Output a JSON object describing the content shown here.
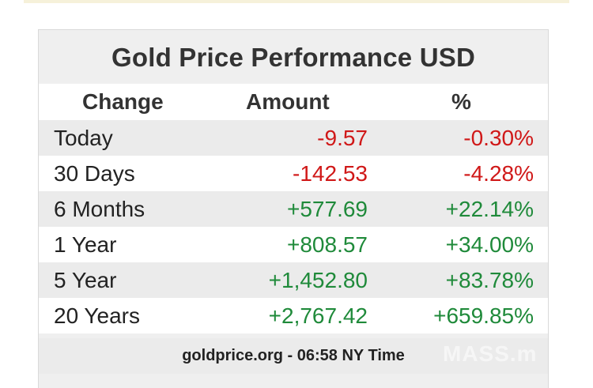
{
  "title": "Gold Price Performance USD",
  "header": {
    "change": "Change",
    "amount": "Amount",
    "percent": "%"
  },
  "rows": [
    {
      "label": "Today",
      "amount": "-9.57",
      "percent": "-0.30%",
      "direction": "neg"
    },
    {
      "label": "30 Days",
      "amount": "-142.53",
      "percent": "-4.28%",
      "direction": "neg"
    },
    {
      "label": "6 Months",
      "amount": "+577.69",
      "percent": "+22.14%",
      "direction": "pos"
    },
    {
      "label": "1 Year",
      "amount": "+808.57",
      "percent": "+34.00%",
      "direction": "pos"
    },
    {
      "label": "5 Year",
      "amount": "+1,452.80",
      "percent": "+83.78%",
      "direction": "pos"
    },
    {
      "label": "20 Years",
      "amount": "+2,767.42",
      "percent": "+659.85%",
      "direction": "pos"
    }
  ],
  "footer": "goldprice.org - 06:58 NY Time",
  "watermark": "MASS.m",
  "colors": {
    "negative": "#d01818",
    "positive": "#1f8a3a"
  }
}
